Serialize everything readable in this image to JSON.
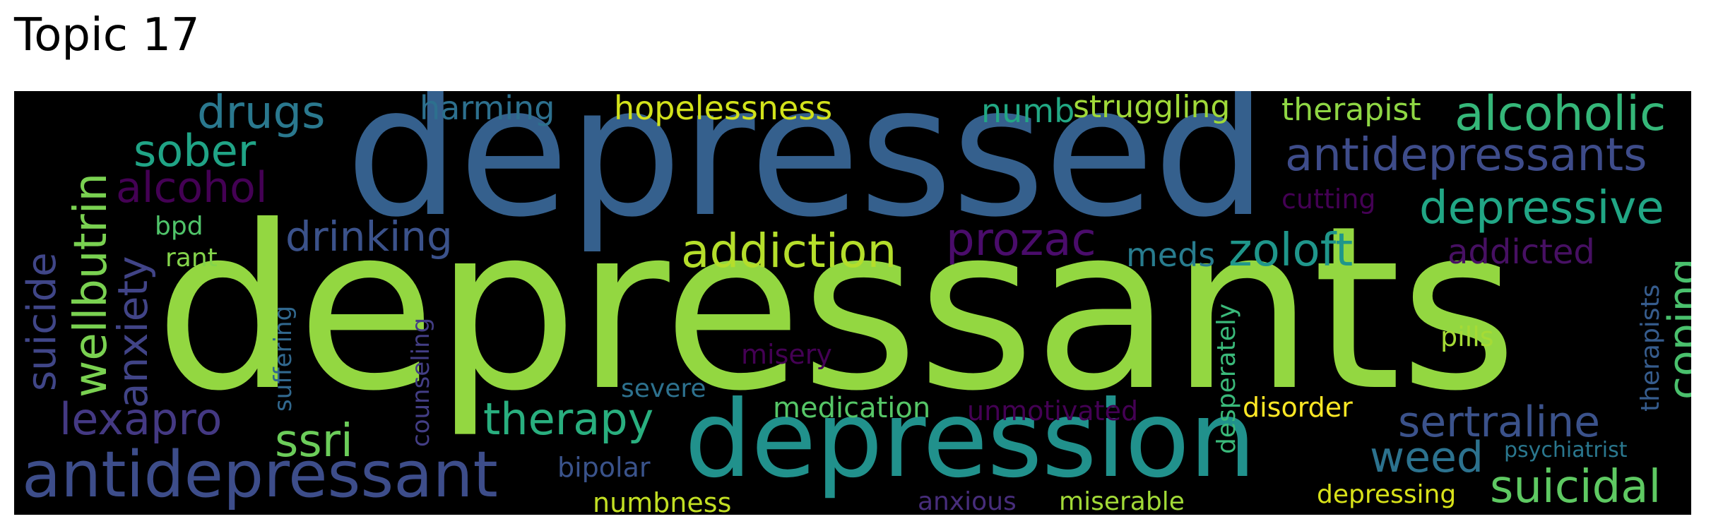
{
  "title": "Topic 17",
  "words": [
    {
      "text": "depressants",
      "color": "#93d741"
    },
    {
      "text": "depressed",
      "color": "#35608d"
    },
    {
      "text": "depression",
      "color": "#21918c"
    },
    {
      "text": "antidepressant",
      "color": "#3d4d8a"
    },
    {
      "text": "antidepressants",
      "color": "#3e4c8a"
    },
    {
      "text": "alcoholic",
      "color": "#35b779"
    },
    {
      "text": "depressive",
      "color": "#21a685"
    },
    {
      "text": "suicidal",
      "color": "#5ec962"
    },
    {
      "text": "sertraline",
      "color": "#3b528b"
    },
    {
      "text": "zoloft",
      "color": "#1f968b"
    },
    {
      "text": "prozac",
      "color": "#4a0c6b"
    },
    {
      "text": "addiction",
      "color": "#b5de2b"
    },
    {
      "text": "therapy",
      "color": "#29af7f"
    },
    {
      "text": "drugs",
      "color": "#2a788e"
    },
    {
      "text": "sober",
      "color": "#20a486"
    },
    {
      "text": "alcohol",
      "color": "#440154"
    },
    {
      "text": "drinking",
      "color": "#3b528b"
    },
    {
      "text": "lexapro",
      "color": "#443983"
    },
    {
      "text": "ssri",
      "color": "#6ccd5a"
    },
    {
      "text": "weed",
      "color": "#2c728e"
    },
    {
      "text": "coping",
      "color": "#4ac16d"
    },
    {
      "text": "wellbutrin",
      "color": "#7ad151"
    },
    {
      "text": "anxiety",
      "color": "#414487"
    },
    {
      "text": "suicide",
      "color": "#404688"
    },
    {
      "text": "hopelessness",
      "color": "#d2e21b"
    },
    {
      "text": "harming",
      "color": "#2d708e"
    },
    {
      "text": "numb",
      "color": "#22a884"
    },
    {
      "text": "struggling",
      "color": "#a0da39"
    },
    {
      "text": "therapist",
      "color": "#8fd744"
    },
    {
      "text": "addicted",
      "color": "#471063"
    },
    {
      "text": "meds",
      "color": "#287c8e"
    },
    {
      "text": "cutting",
      "color": "#440154"
    },
    {
      "text": "bpd",
      "color": "#50c46a"
    },
    {
      "text": "rant",
      "color": "#84d44b"
    },
    {
      "text": "suffering",
      "color": "#31688e"
    },
    {
      "text": "counseling",
      "color": "#433e85"
    },
    {
      "text": "misery",
      "color": "#440154"
    },
    {
      "text": "severe",
      "color": "#2d718e"
    },
    {
      "text": "medication",
      "color": "#56c667"
    },
    {
      "text": "unmotivated",
      "color": "#440154"
    },
    {
      "text": "disorder",
      "color": "#fde725"
    },
    {
      "text": "desperately",
      "color": "#3ab97a"
    },
    {
      "text": "pills",
      "color": "#a5db36"
    },
    {
      "text": "therapists",
      "color": "#365c8d"
    },
    {
      "text": "psychiatrist",
      "color": "#2a778e"
    },
    {
      "text": "bipolar",
      "color": "#3a538b"
    },
    {
      "text": "numbness",
      "color": "#c2df23"
    },
    {
      "text": "anxious",
      "color": "#472d7b"
    },
    {
      "text": "miserable",
      "color": "#a2da37"
    },
    {
      "text": "depressing",
      "color": "#d8e219"
    }
  ]
}
